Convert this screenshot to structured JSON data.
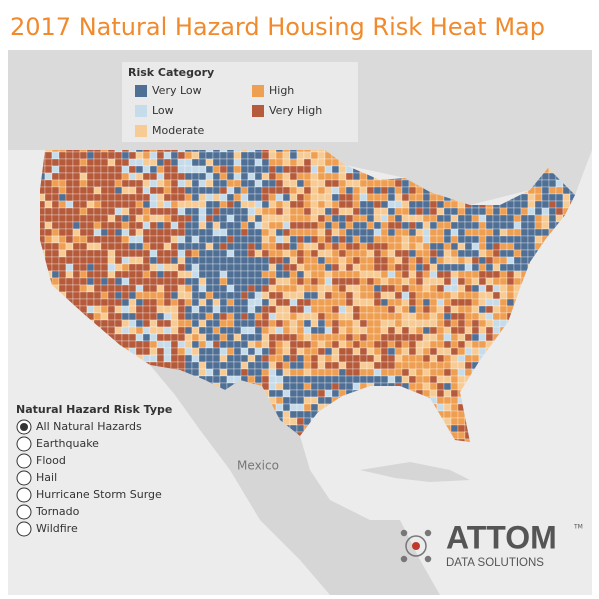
{
  "title": "2017 Natural Hazard Housing Risk Heat Map",
  "legend": {
    "title": "Risk Category",
    "items": [
      {
        "label": "Very Low",
        "color": "#4f6f95"
      },
      {
        "label": "Low",
        "color": "#c6dcea"
      },
      {
        "label": "Moderate",
        "color": "#f7cb94"
      },
      {
        "label": "High",
        "color": "#ef9f52"
      },
      {
        "label": "Very High",
        "color": "#b55a3a"
      }
    ]
  },
  "risk_type": {
    "title": "Natural Hazard Risk Type",
    "options": [
      "All Natural Hazards",
      "Earthquake",
      "Flood",
      "Hail",
      "Hurricane Storm Surge",
      "Tornado",
      "Wildfire"
    ],
    "selected": 0
  },
  "map_labels": [
    "Mexico"
  ],
  "logo": {
    "name": "ATTOM",
    "tm": "TM",
    "tagline": "DATA SOLUTIONS"
  }
}
